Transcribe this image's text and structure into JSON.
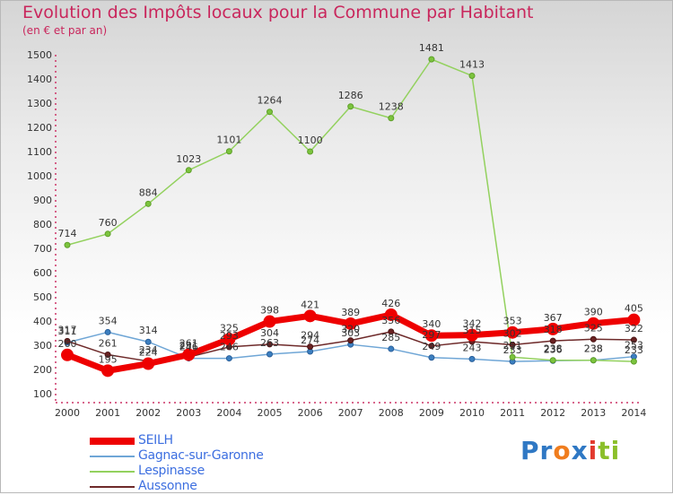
{
  "title": "Evolution des Impôts locaux pour la Commune par Habitant",
  "subtitle": "(en € et par an)",
  "logo": {
    "text": "Proxiti",
    "letters": [
      "P",
      "r",
      "o",
      "x",
      "i",
      "t",
      "i"
    ],
    "colors": [
      "#2f78c4",
      "#2f78c4",
      "#f07d1e",
      "#2f78c4",
      "#e23a2e",
      "#8bbf2a",
      "#8bbf2a"
    ]
  },
  "chart_data": {
    "type": "line",
    "title": "Evolution des Impôts locaux pour la Commune par Habitant",
    "subtitle": "(en € et par an)",
    "x": [
      "2000",
      "2001",
      "2002",
      "2003",
      "2004",
      "2005",
      "2006",
      "2007",
      "2008",
      "2009",
      "2010",
      "2011",
      "2012",
      "2013",
      "2014"
    ],
    "yticks": [
      100,
      200,
      300,
      400,
      500,
      600,
      700,
      800,
      900,
      1000,
      1100,
      1200,
      1300,
      1400,
      1500
    ],
    "ylim": [
      100,
      1500
    ],
    "grid": false,
    "legend_position": "bottom-left",
    "series": [
      {
        "name": "Gagnac-sur-Garonne",
        "color": "#6fa6d6",
        "values": [
          311,
          354,
          314,
          246,
          246,
          263,
          274,
          303,
          285,
          249,
          243,
          233,
          236,
          238,
          253
        ],
        "labels": [
          "311",
          "354",
          "314",
          "246",
          "246",
          "263",
          "274",
          "303",
          "285",
          "249",
          "243",
          "233",
          "236",
          "238",
          "253"
        ]
      },
      {
        "name": "Lespinasse",
        "color": "#93d15e",
        "values": [
          714,
          760,
          884,
          1023,
          1101,
          1264,
          1100,
          1286,
          1238,
          1481,
          1413,
          251,
          238,
          238,
          233
        ],
        "labels": [
          "714",
          "760",
          "884",
          "1023",
          "1101",
          "1264",
          "1100",
          "1286",
          "1238",
          "1481",
          "1413",
          "251",
          "238",
          "238",
          "233"
        ]
      },
      {
        "name": "Aussonne",
        "color": "#6e2a2a",
        "values": [
          317,
          261,
          234,
          251,
          293,
          304,
          294,
          320,
          356,
          297,
          315,
          302,
          318,
          325,
          322
        ],
        "labels": [
          "317",
          "261",
          "234",
          "251",
          "293",
          "304",
          "294",
          "320",
          "356",
          "297",
          "315",
          "302",
          "318",
          "325",
          "322"
        ]
      },
      {
        "name": "SEILH",
        "color": "#ee0000",
        "values": [
          260,
          195,
          224,
          261,
          325,
          398,
          421,
          389,
          426,
          340,
          342,
          353,
          367,
          390,
          405
        ],
        "labels": [
          "260",
          "195",
          "224",
          "261",
          "325",
          "398",
          "421",
          "389",
          "426",
          "340",
          "342",
          "353",
          "367",
          "390",
          "405"
        ]
      }
    ]
  },
  "legend": [
    {
      "name": "SEILH",
      "color": "#ee0000"
    },
    {
      "name": "Gagnac-sur-Garonne",
      "color": "#6fa6d6"
    },
    {
      "name": "Lespinasse",
      "color": "#93d15e"
    },
    {
      "name": "Aussonne",
      "color": "#6e2a2a"
    }
  ]
}
